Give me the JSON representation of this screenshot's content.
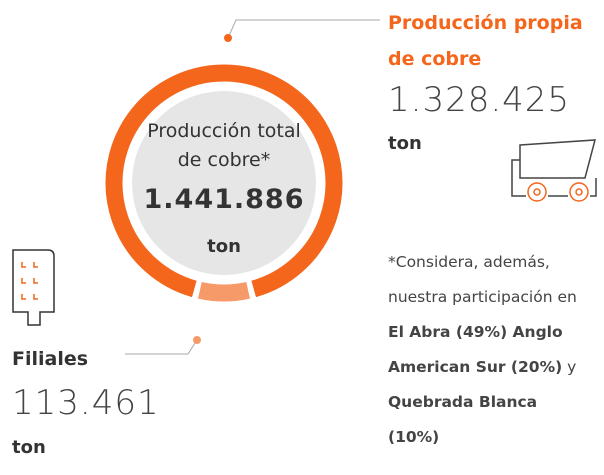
{
  "chart_data": {
    "type": "donut",
    "center": {
      "title": "Producción total de cobre*",
      "value": 1441886,
      "value_label": "1.441.886",
      "unit": "ton"
    },
    "categories": [
      "Producción propia de cobre",
      "Filiales"
    ],
    "values": [
      1328425,
      113461
    ],
    "value_labels": [
      "1.328.425",
      "113.461"
    ],
    "units": [
      "ton",
      "ton"
    ],
    "colors": [
      "#f4661b",
      "#f79a6a"
    ],
    "note": [
      {
        "text": "*Considera, además, nuestra participación en ",
        "bold": false
      },
      {
        "text": "El Abra (49%) Anglo American Sur (20%)",
        "bold": true
      },
      {
        "text": " y ",
        "bold": false
      },
      {
        "text": "Quebrada Blanca (10%)",
        "bold": true
      }
    ]
  }
}
